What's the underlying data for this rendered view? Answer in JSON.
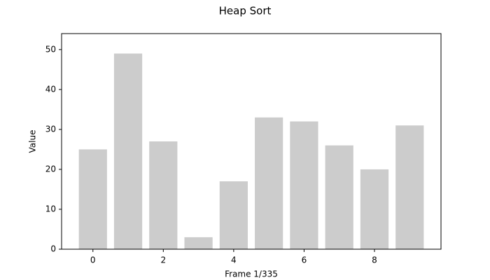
{
  "chart_data": {
    "type": "bar",
    "title": "Heap Sort",
    "xlabel": "Frame 1/335",
    "ylabel": "Value",
    "x": [
      0,
      1,
      2,
      3,
      4,
      5,
      6,
      7,
      8,
      9
    ],
    "values": [
      25,
      49,
      27,
      3,
      17,
      33,
      32,
      26,
      20,
      31
    ],
    "color": "#cccccc",
    "bar_width": 0.8,
    "xlim": [
      -0.89,
      9.89
    ],
    "xticks": [
      0,
      2,
      4,
      6,
      8
    ],
    "ylim": [
      0,
      54
    ],
    "yticks": [
      0,
      10,
      20,
      30,
      40,
      50
    ],
    "grid": false
  }
}
